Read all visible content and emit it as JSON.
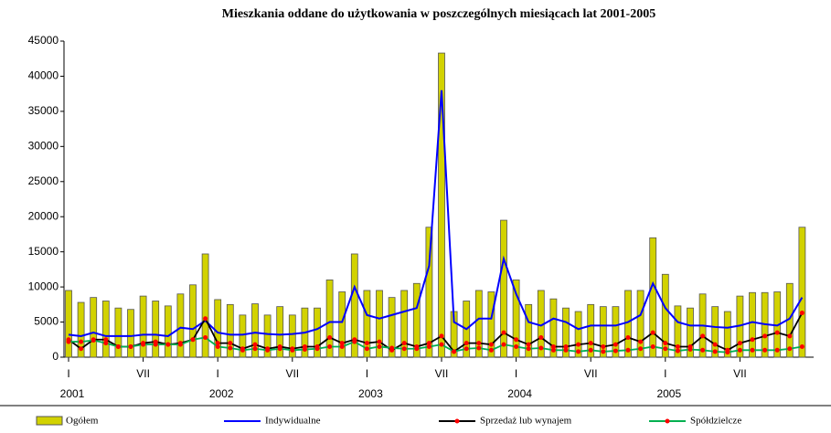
{
  "chart_data": {
    "type": "bar",
    "title": "Mieszkania oddane do użytkowania w poszczególnych miesiącach lat 2001-2005",
    "categories": [
      "I",
      null,
      null,
      null,
      null,
      null,
      "VII",
      null,
      null,
      null,
      null,
      null,
      "I",
      null,
      null,
      null,
      null,
      null,
      "VII",
      null,
      null,
      null,
      null,
      null,
      "I",
      null,
      null,
      null,
      null,
      null,
      "VII",
      null,
      null,
      null,
      null,
      null,
      "I",
      null,
      null,
      null,
      null,
      null,
      "VII",
      null,
      null,
      null,
      null,
      null,
      "I",
      null,
      null,
      null,
      null,
      null,
      "VII",
      null,
      null,
      null,
      null,
      null
    ],
    "years": [
      "2001",
      "2002",
      "2003",
      "2004",
      "2005"
    ],
    "ylim": [
      0,
      45000
    ],
    "yticks": [
      0,
      5000,
      10000,
      15000,
      20000,
      25000,
      30000,
      35000,
      40000,
      45000
    ],
    "series": [
      {
        "name": "Ogółem",
        "type": "bar",
        "color": "#d2d200",
        "values": [
          9500,
          7800,
          8500,
          8000,
          7000,
          6800,
          8700,
          8000,
          7300,
          9000,
          10300,
          14700,
          8200,
          7500,
          6000,
          7600,
          6000,
          7200,
          6000,
          7000,
          7000,
          11000,
          9300,
          14700,
          9500,
          9500,
          8500,
          9500,
          10500,
          18500,
          43300,
          6500,
          8000,
          9500,
          9300,
          19500,
          11000,
          7500,
          9500,
          8300,
          7000,
          6500,
          7500,
          7200,
          7200,
          9500,
          9500,
          17000,
          11800,
          7300,
          7000,
          9000,
          7200,
          6500,
          8700,
          9200,
          9200,
          9300,
          10500,
          18500
        ]
      },
      {
        "name": "Indywidualne",
        "type": "line",
        "color": "#0000ff",
        "values": [
          3200,
          3000,
          3500,
          3000,
          3000,
          3000,
          3200,
          3200,
          3000,
          4200,
          4000,
          5200,
          3500,
          3200,
          3200,
          3500,
          3300,
          3200,
          3300,
          3500,
          4000,
          5000,
          5000,
          10000,
          6000,
          5500,
          6000,
          6500,
          7000,
          13000,
          38000,
          5000,
          4000,
          5500,
          5500,
          14000,
          9000,
          5000,
          4500,
          5500,
          5000,
          4000,
          4500,
          4500,
          4500,
          5000,
          6000,
          10500,
          7000,
          5000,
          4500,
          4500,
          4300,
          4200,
          4500,
          5000,
          4700,
          4500,
          5500,
          8500
        ]
      },
      {
        "name": "Sprzedaż lub wynajem",
        "type": "line",
        "color": "#000000",
        "marker_color": "#ff0000",
        "values": [
          2500,
          1200,
          2500,
          2500,
          1500,
          1500,
          2000,
          2200,
          1800,
          2000,
          2500,
          5500,
          2000,
          2000,
          1200,
          1800,
          1200,
          1500,
          1200,
          1500,
          1500,
          2800,
          2000,
          2500,
          2000,
          2200,
          1000,
          2000,
          1500,
          2000,
          3000,
          800,
          2000,
          2000,
          1800,
          3500,
          2500,
          1800,
          2800,
          1500,
          1500,
          1800,
          2000,
          1500,
          1800,
          2800,
          2200,
          3500,
          2000,
          1500,
          1500,
          3000,
          1800,
          1000,
          2000,
          2500,
          3000,
          3500,
          3000,
          6300
        ]
      },
      {
        "name": "Spółdzielcze",
        "type": "line",
        "color": "#00b050",
        "marker_color": "#ff0000",
        "values": [
          2200,
          2200,
          2400,
          2000,
          1500,
          1500,
          1800,
          1800,
          1800,
          1800,
          2500,
          2800,
          1500,
          1300,
          1000,
          1200,
          1000,
          1200,
          1000,
          1100,
          1200,
          1500,
          1500,
          2200,
          1200,
          1500,
          1300,
          1200,
          1200,
          1500,
          1800,
          800,
          1200,
          1300,
          1000,
          1800,
          1500,
          1200,
          1300,
          1000,
          1000,
          800,
          1000,
          800,
          900,
          1000,
          1200,
          1500,
          1200,
          900,
          1100,
          1000,
          800,
          700,
          1000,
          1000,
          1000,
          1000,
          1200,
          1500
        ]
      }
    ]
  }
}
